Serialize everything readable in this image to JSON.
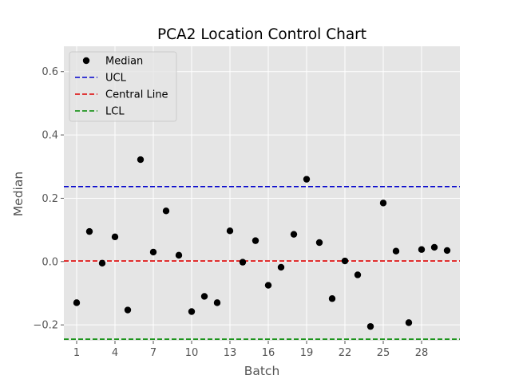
{
  "chart_data": {
    "type": "scatter",
    "title": "PCA2 Location Control Chart",
    "xlabel": "Batch",
    "ylabel": "Median",
    "xlim": [
      0,
      31
    ],
    "ylim": [
      -0.25,
      0.68
    ],
    "x_ticks": [
      1,
      4,
      7,
      10,
      13,
      16,
      19,
      22,
      25,
      28
    ],
    "y_ticks": [
      -0.2,
      0.0,
      0.2,
      0.4,
      0.6
    ],
    "y_tick_labels": [
      "−0.2",
      "0.0",
      "0.2",
      "0.4",
      "0.6"
    ],
    "grid": true,
    "legend_position": "top-left",
    "series": [
      {
        "name": "Median",
        "kind": "scatter",
        "color": "#000000",
        "x": [
          1,
          2,
          3,
          4,
          5,
          6,
          7,
          8,
          9,
          10,
          11,
          12,
          13,
          14,
          15,
          16,
          17,
          18,
          19,
          20,
          21,
          22,
          23,
          24,
          25,
          26,
          27,
          28,
          29,
          30
        ],
        "y": [
          -0.13,
          0.095,
          -0.005,
          0.078,
          -0.153,
          0.322,
          0.03,
          0.16,
          0.02,
          -0.158,
          -0.11,
          -0.13,
          0.097,
          -0.002,
          0.066,
          -0.075,
          -0.018,
          0.086,
          0.26,
          0.06,
          -0.117,
          0.002,
          -0.042,
          -0.205,
          0.185,
          0.033,
          -0.193,
          0.038,
          0.045,
          0.035
        ]
      },
      {
        "name": "UCL",
        "kind": "hline",
        "y": 0.237,
        "color": "#0000cc",
        "dash": "dashed"
      },
      {
        "name": "Central Line",
        "kind": "hline",
        "y": 0.002,
        "color": "#dd0000",
        "dash": "dashed"
      },
      {
        "name": "LCL",
        "kind": "hline",
        "y": -0.245,
        "color": "#008800",
        "dash": "dashed"
      }
    ]
  }
}
